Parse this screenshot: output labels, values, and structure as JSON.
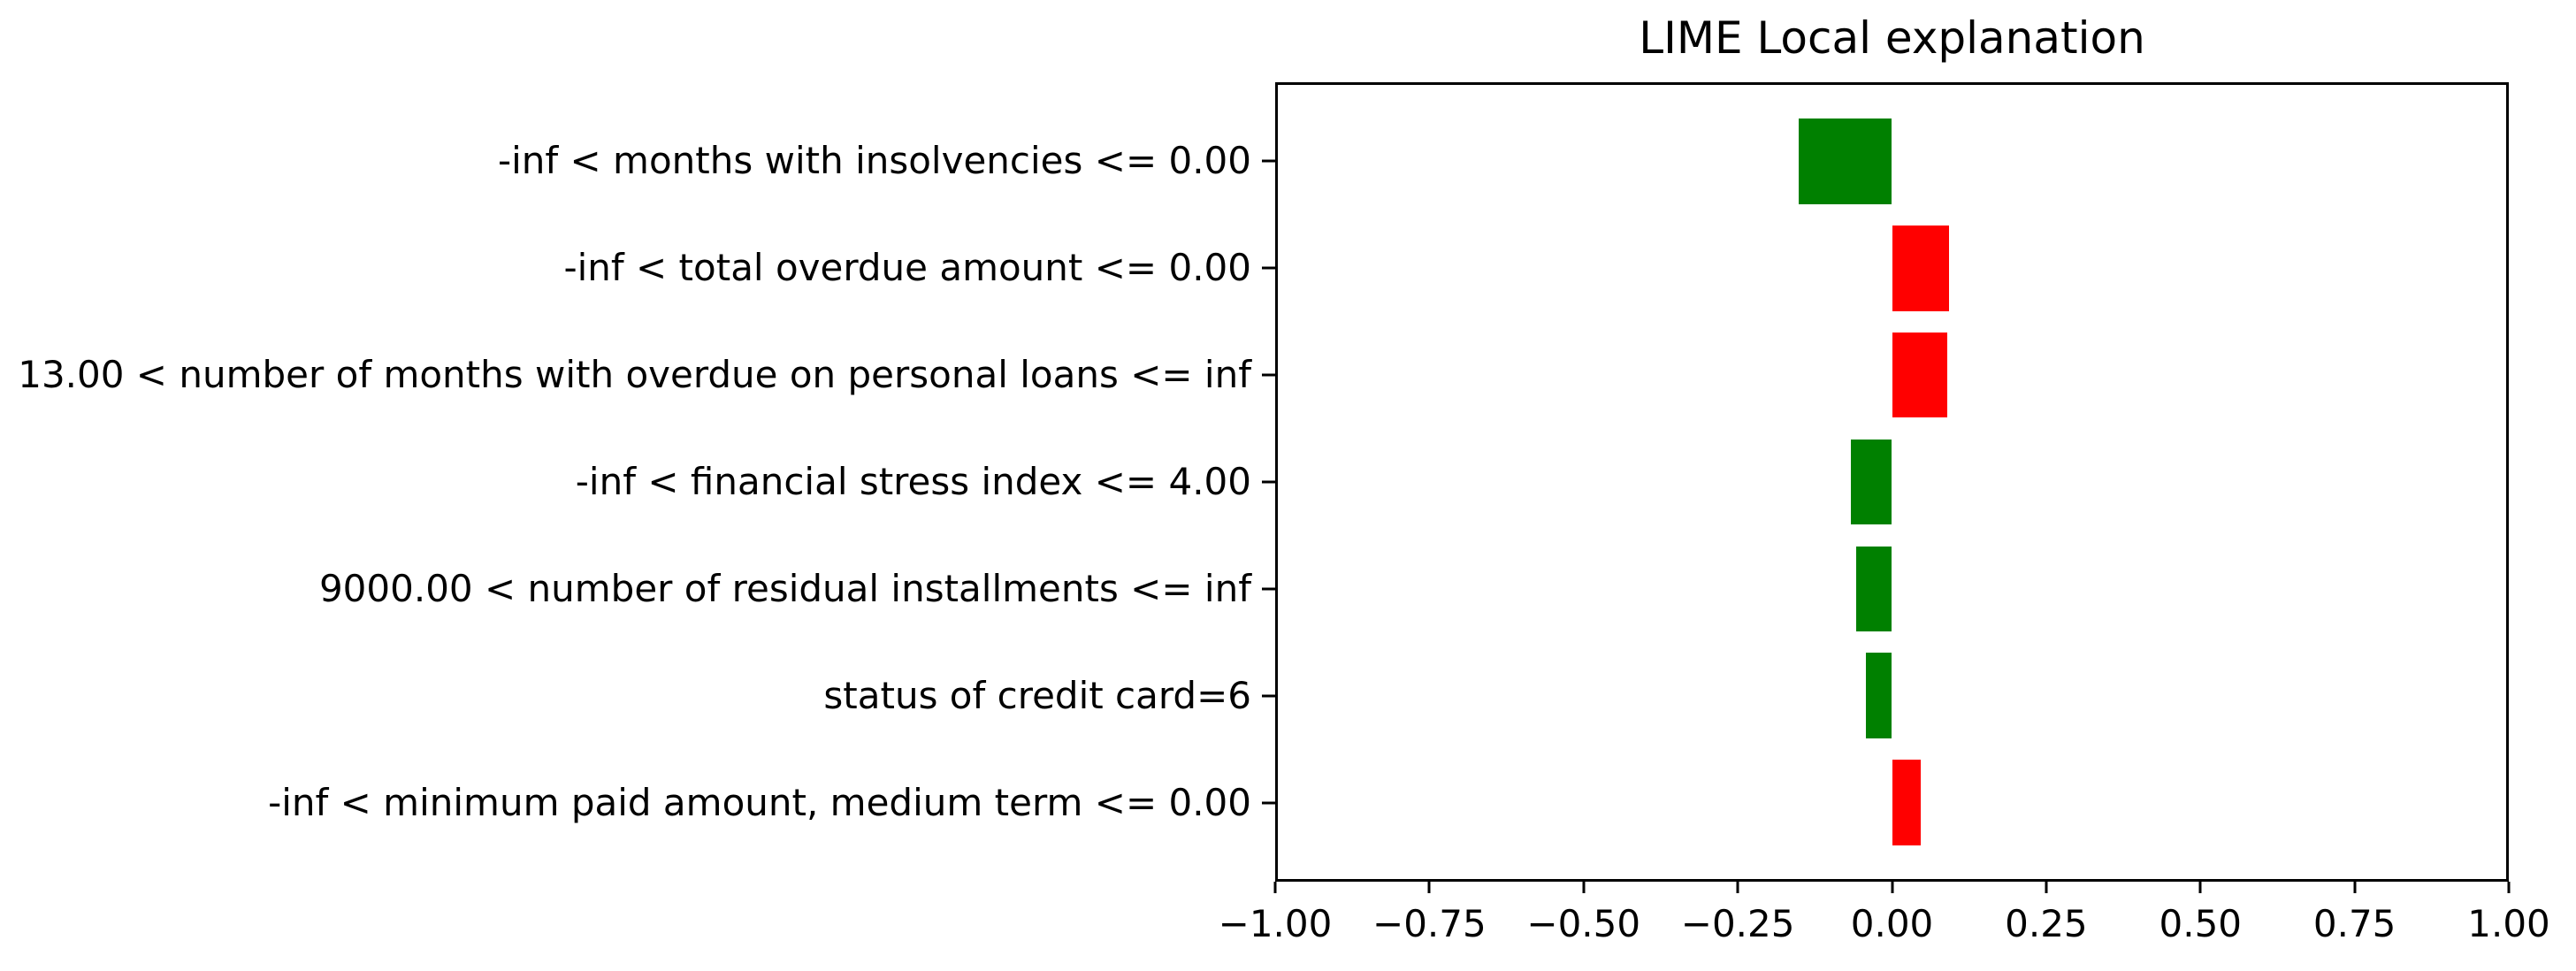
{
  "title": "LIME Local explanation",
  "colors": {
    "positive_bar": "#ff0000",
    "negative_bar": "#008000",
    "axis": "#000000",
    "background": "#ffffff"
  },
  "chart_data": {
    "type": "bar",
    "orientation": "horizontal",
    "title": "LIME Local explanation",
    "categories": [
      "-inf < months with insolvencies <= 0.00",
      "-inf < total overdue amount <= 0.00",
      "13.00 < number of months with overdue on personal loans <= inf",
      "-inf < financial stress index <= 4.00",
      "9000.00 < number of residual installments <= inf",
      "status of credit card=6",
      "-inf < minimum paid amount, medium term <= 0.00"
    ],
    "values": [
      -0.151,
      0.092,
      0.089,
      -0.067,
      -0.058,
      -0.043,
      0.046
    ],
    "positive_color": "#ff0000",
    "negative_color": "#008000",
    "xlim": [
      -1.0,
      1.0
    ],
    "x_ticks": [
      {
        "value": -1.0,
        "label": "−1.00"
      },
      {
        "value": -0.75,
        "label": "−0.75"
      },
      {
        "value": -0.5,
        "label": "−0.50"
      },
      {
        "value": -0.25,
        "label": "−0.25"
      },
      {
        "value": 0.0,
        "label": "0.00"
      },
      {
        "value": 0.25,
        "label": "0.25"
      },
      {
        "value": 0.5,
        "label": "0.50"
      },
      {
        "value": 0.75,
        "label": "0.75"
      },
      {
        "value": 1.0,
        "label": "1.00"
      }
    ],
    "bar_rel_height": 0.8,
    "grid": false,
    "legend": null,
    "xlabel": "",
    "ylabel": ""
  }
}
